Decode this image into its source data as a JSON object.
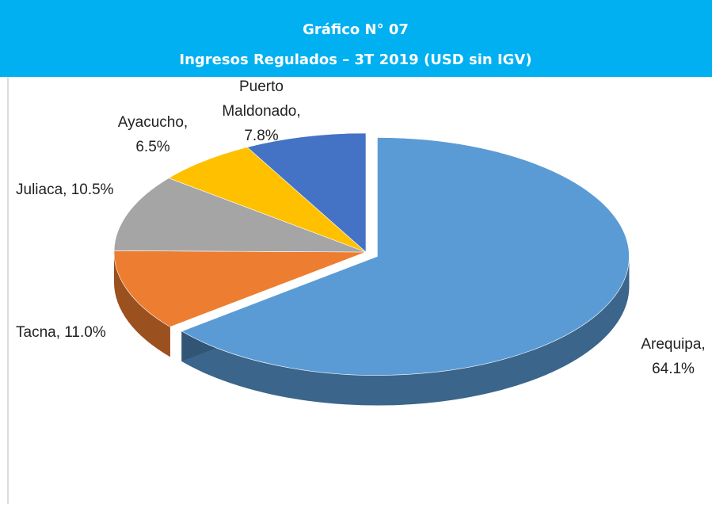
{
  "chart_data": {
    "type": "pie3d",
    "title": "Gráfico N° 07",
    "subtitle": "Ingresos Regulados – 3T 2019 (USD sin IGV)",
    "values": [
      64.1,
      11.0,
      10.5,
      6.5,
      7.8
    ],
    "value_labels": [
      "Arequipa, 64.1%",
      "Tacna, 11.0%",
      "Juliaca, 10.5%",
      "Ayacucho, 6.5%",
      "Puerto Maldonado, 7.8%"
    ],
    "colors": [
      "#5b9bd5",
      "#ed7d31",
      "#a5a5a5",
      "#ffc000",
      "#4472c4"
    ]
  }
}
